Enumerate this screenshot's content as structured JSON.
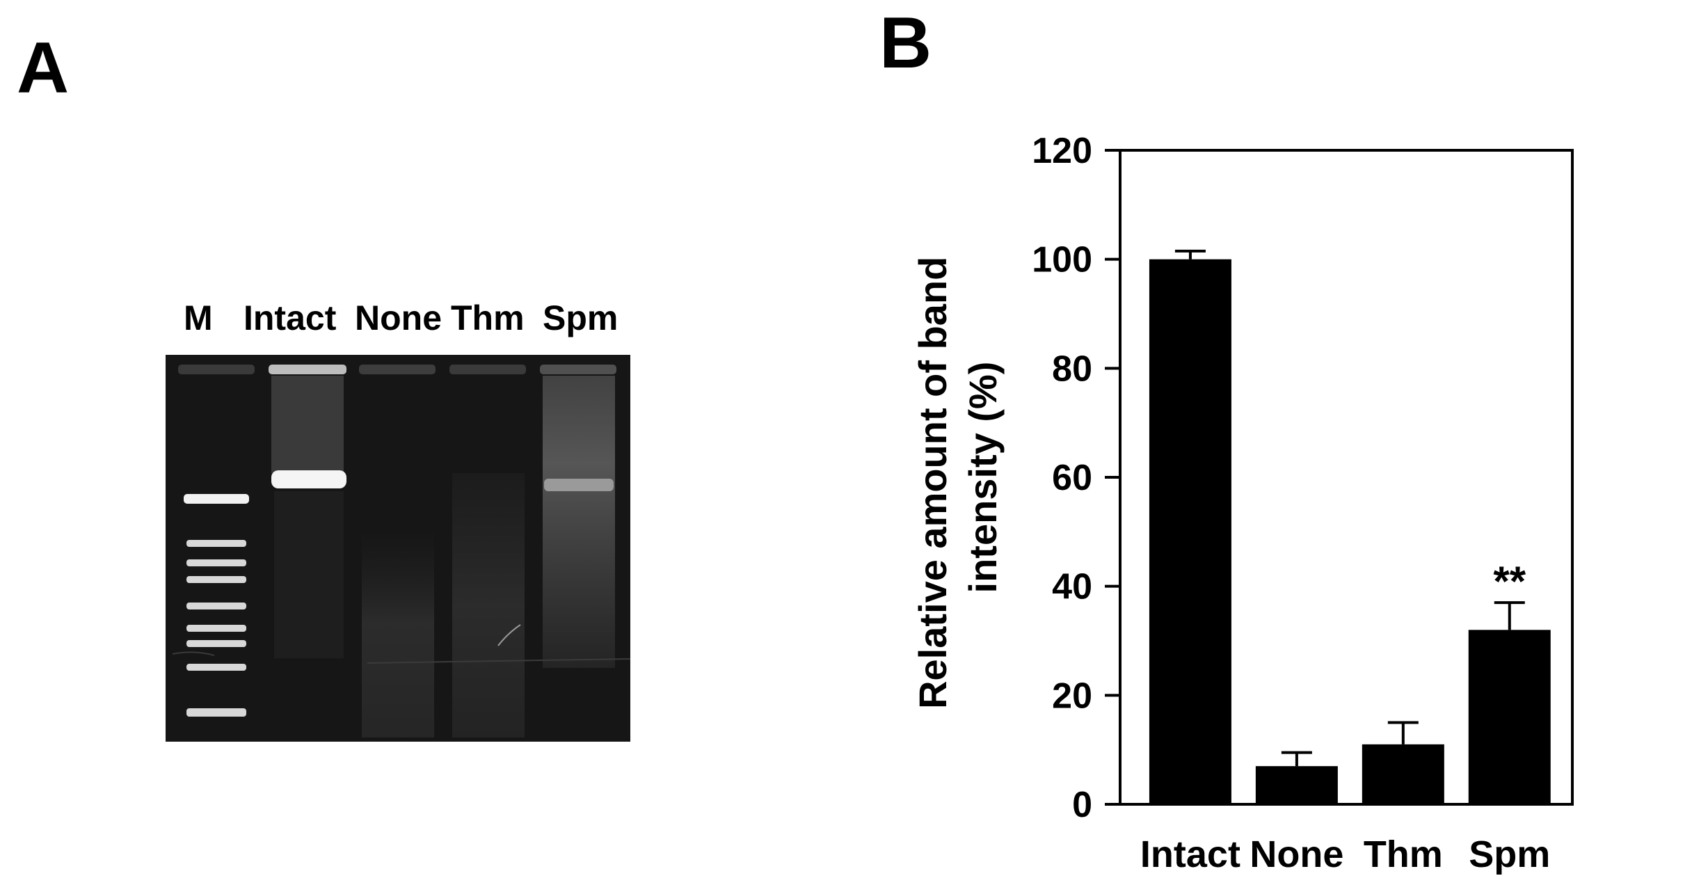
{
  "panel_a": {
    "letter": "A",
    "lane_labels": [
      "M",
      "Intact",
      "None",
      "Thm",
      "Spm"
    ]
  },
  "panel_b": {
    "letter": "B"
  },
  "chart_data": {
    "type": "bar",
    "title": "",
    "xlabel": "",
    "ylabel": "Relative amount of band intensity (%)",
    "ylabel_lines": [
      "Relative amount of band",
      "intensity (%)"
    ],
    "categories": [
      "Intact",
      "None",
      "Thm",
      "Spm"
    ],
    "values": [
      100,
      7,
      11,
      32
    ],
    "error": [
      1.5,
      2.5,
      4,
      5
    ],
    "ylim": [
      0,
      120
    ],
    "yticks": [
      0,
      20,
      40,
      60,
      80,
      100,
      120
    ],
    "annotations": [
      {
        "category": "Spm",
        "text": "**"
      }
    ],
    "bar_color": "#000000",
    "grid": false,
    "legend": "none"
  }
}
